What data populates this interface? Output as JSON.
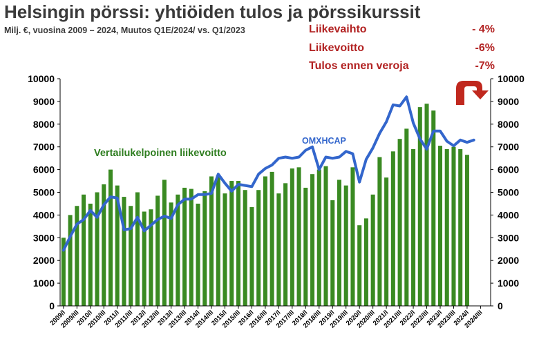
{
  "header": {
    "title": "Helsingin pörssi: yhtiöiden tulos ja pörssikurssit",
    "subtitle": "Milj. €, vuosina 2009 – 2024, Muutos Q1E/2024/ vs. Q1/2023"
  },
  "stats": [
    {
      "label": "Liikevaihto",
      "value": "- 4%"
    },
    {
      "label": "Liikevoitto",
      "value": "-6%"
    },
    {
      "label": "Tulos ennen veroja",
      "value": "-7%"
    }
  ],
  "colors": {
    "bars": "#3a8a22",
    "line": "#3366cc",
    "stats": "#b22222",
    "annotation_bar": "#2e7d1f",
    "annotation_line": "#3366cc",
    "arrow": "#c0281e"
  },
  "icons": {
    "trend_arrow": "curved-down-arrow-icon"
  },
  "chart_data": {
    "type": "bar",
    "y_ticks": [
      0,
      1000,
      2000,
      3000,
      4000,
      5000,
      6000,
      7000,
      8000,
      9000,
      10000
    ],
    "ylim": [
      0,
      10000
    ],
    "grid": false,
    "categories": [
      "2009/I",
      "2009/II",
      "2009/III",
      "2009/IV",
      "2010/I",
      "2010/II",
      "2010/III",
      "2010/IV",
      "2011/I",
      "2011/II",
      "2011/III",
      "2011/IV",
      "2012/I",
      "2012/II",
      "2012/III",
      "2012/IV",
      "2013/I",
      "2013/II",
      "2013/III",
      "2013/IV",
      "2014/I",
      "2014/II",
      "2014/III",
      "2014/IV",
      "2015/I",
      "2015/II",
      "2015/III",
      "2015/IV",
      "2016/I",
      "2016/II",
      "2016/III",
      "2016/IV",
      "2017/I",
      "2017/II",
      "2017/III",
      "2017/IV",
      "2018/I",
      "2018/II",
      "2018/III",
      "2018/IV",
      "2019/I",
      "2019/II",
      "2019/III",
      "2019/IV",
      "2020/I",
      "2020/II",
      "2020/III",
      "2020/IV",
      "2021/I",
      "2021/II",
      "2021/III",
      "2021/IV",
      "2022/I",
      "2022/II",
      "2022/III",
      "2022/IV",
      "2023/I",
      "2023/II",
      "2023/III",
      "2023/IV",
      "2024/I",
      "2024/II",
      "2024/III",
      "2024/IV"
    ],
    "x_tick_labels": [
      "2009/I",
      "2009/III",
      "2010/I",
      "2010/III",
      "2011/I",
      "2011/III",
      "2012/I",
      "2012/III",
      "2013/I",
      "2013/III",
      "2014/I",
      "2014/III",
      "2015/I",
      "2015/III",
      "2016/I",
      "2016/III",
      "2017/I",
      "2017/III",
      "2018/I",
      "2018/III",
      "2019/I",
      "2019/III",
      "2020/I",
      "2020/III",
      "2021/I",
      "2021/III",
      "2022/I",
      "2022/III",
      "2023/I",
      "2023/III",
      "2024/I",
      "2024/III"
    ],
    "series": [
      {
        "name": "Vertailukelpoinen liikevoitto",
        "type": "bar",
        "values": [
          3000,
          4000,
          4400,
          4900,
          4500,
          5000,
          5350,
          6000,
          5300,
          4800,
          4400,
          5000,
          4150,
          4250,
          4850,
          5550,
          4550,
          4900,
          5200,
          5150,
          4500,
          5050,
          5700,
          5750,
          4950,
          5500,
          5500,
          5100,
          4350,
          5100,
          5700,
          5900,
          4950,
          5400,
          6050,
          6100,
          5200,
          5800,
          6000,
          6150,
          4650,
          5550,
          5300,
          6100,
          3550,
          3850,
          4900,
          6550,
          5650,
          6800,
          7350,
          7800,
          6900,
          8750,
          8900,
          8600,
          7050,
          6900,
          7000,
          6900,
          6650,
          null,
          null,
          null
        ]
      },
      {
        "name": "OMXHCAP",
        "type": "line",
        "values": [
          2450,
          3050,
          3600,
          3800,
          4200,
          3900,
          4450,
          4800,
          4750,
          3350,
          3400,
          3900,
          3300,
          3550,
          3800,
          3950,
          3850,
          4450,
          4700,
          4700,
          4900,
          4900,
          4950,
          5800,
          5400,
          5050,
          5350,
          5300,
          5250,
          5800,
          6050,
          6200,
          6500,
          6550,
          6500,
          6550,
          6850,
          7000,
          6000,
          6550,
          6500,
          6550,
          6800,
          6700,
          5450,
          6450,
          6950,
          7600,
          8100,
          8850,
          8800,
          9200,
          8050,
          7350,
          6900,
          7700,
          7700,
          7250,
          7050,
          7300,
          7200,
          7300,
          null,
          null
        ]
      }
    ]
  }
}
